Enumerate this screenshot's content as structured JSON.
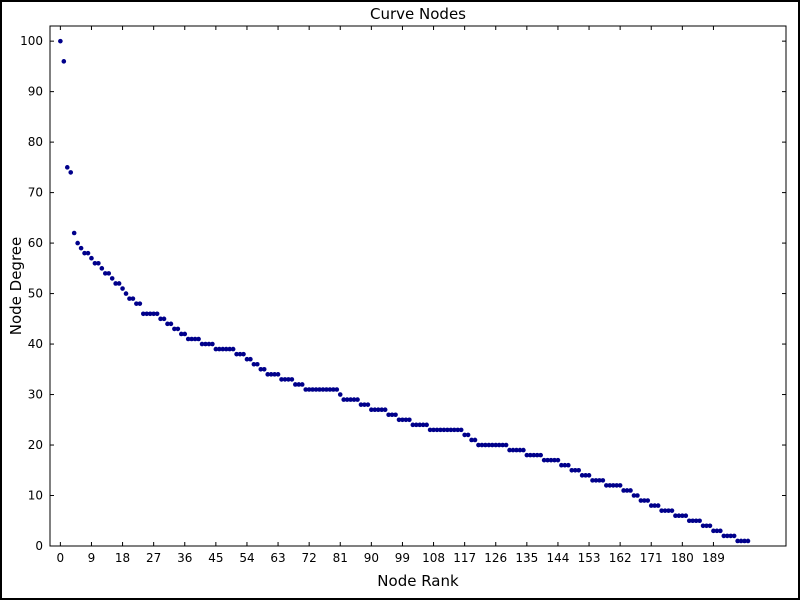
{
  "chart_data": {
    "type": "scatter",
    "title": "Curve Nodes",
    "xlabel": "Node Rank",
    "ylabel": "Node Degree",
    "marker_color": "#00008b",
    "axis_color": "#000000",
    "background_color": "#ffffff",
    "legend": "none",
    "grid": false,
    "xlim": [
      -3,
      210
    ],
    "ylim": [
      0,
      103
    ],
    "xticks": [
      0,
      9,
      18,
      27,
      36,
      45,
      54,
      63,
      72,
      81,
      90,
      99,
      108,
      117,
      126,
      135,
      144,
      153,
      162,
      171,
      180,
      189
    ],
    "yticks": [
      0,
      10,
      20,
      30,
      40,
      50,
      60,
      70,
      80,
      90,
      100
    ],
    "x_is_rank_index": true,
    "values": [
      100,
      96,
      75,
      74,
      62,
      60,
      59,
      58,
      58,
      57,
      56,
      56,
      55,
      54,
      54,
      53,
      52,
      52,
      51,
      50,
      49,
      49,
      48,
      48,
      46,
      46,
      46,
      46,
      46,
      45,
      45,
      44,
      44,
      43,
      43,
      42,
      42,
      41,
      41,
      41,
      41,
      40,
      40,
      40,
      40,
      39,
      39,
      39,
      39,
      39,
      39,
      38,
      38,
      38,
      37,
      37,
      36,
      36,
      35,
      35,
      34,
      34,
      34,
      34,
      33,
      33,
      33,
      33,
      32,
      32,
      32,
      31,
      31,
      31,
      31,
      31,
      31,
      31,
      31,
      31,
      31,
      30,
      29,
      29,
      29,
      29,
      29,
      28,
      28,
      28,
      27,
      27,
      27,
      27,
      27,
      26,
      26,
      26,
      25,
      25,
      25,
      25,
      24,
      24,
      24,
      24,
      24,
      23,
      23,
      23,
      23,
      23,
      23,
      23,
      23,
      23,
      23,
      22,
      22,
      21,
      21,
      20,
      20,
      20,
      20,
      20,
      20,
      20,
      20,
      20,
      19,
      19,
      19,
      19,
      19,
      18,
      18,
      18,
      18,
      18,
      17,
      17,
      17,
      17,
      17,
      16,
      16,
      16,
      15,
      15,
      15,
      14,
      14,
      14,
      13,
      13,
      13,
      13,
      12,
      12,
      12,
      12,
      12,
      11,
      11,
      11,
      10,
      10,
      9,
      9,
      9,
      8,
      8,
      8,
      7,
      7,
      7,
      7,
      6,
      6,
      6,
      6,
      5,
      5,
      5,
      5,
      4,
      4,
      4,
      3,
      3,
      3,
      2,
      2,
      2,
      2,
      1,
      1,
      1,
      1
    ]
  }
}
